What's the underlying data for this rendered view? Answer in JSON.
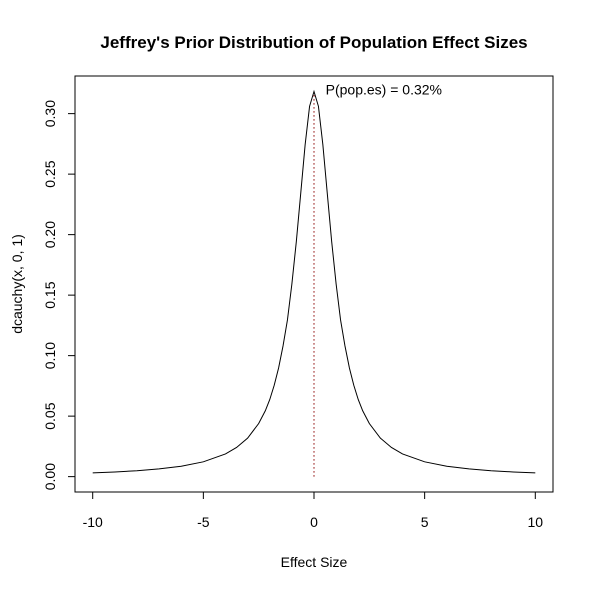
{
  "chart_data": {
    "type": "line",
    "title": "Jeffrey's Prior Distribution of Population Effect Sizes",
    "xlabel": "Effect Size",
    "ylabel": "dcauchy(x, 0, 1)",
    "xlim": [
      -10.8,
      10.8
    ],
    "ylim": [
      -0.0127,
      0.3311
    ],
    "x_ticks": [
      -10,
      -5,
      0,
      5,
      10
    ],
    "x_tick_labels": [
      "-10",
      "-5",
      "0",
      "5",
      "10"
    ],
    "y_ticks": [
      0.0,
      0.05,
      0.1,
      0.15,
      0.2,
      0.25,
      0.3
    ],
    "y_tick_labels": [
      "0.00",
      "0.05",
      "0.10",
      "0.15",
      "0.20",
      "0.25",
      "0.30"
    ],
    "grid": false,
    "series": [
      {
        "x": [
          -10,
          -9,
          -8,
          -7,
          -6,
          -5,
          -4,
          -3.5,
          -3,
          -2.5,
          -2.2,
          -2,
          -1.8,
          -1.6,
          -1.4,
          -1.2,
          -1,
          -0.8,
          -0.6,
          -0.4,
          -0.2,
          0,
          0.2,
          0.4,
          0.6,
          0.8,
          1,
          1.2,
          1.4,
          1.6,
          1.8,
          2,
          2.2,
          2.5,
          3,
          3.5,
          4,
          5,
          6,
          7,
          8,
          9,
          10
        ],
        "y": [
          0.00315,
          0.00388,
          0.0049,
          0.00637,
          0.0086,
          0.01224,
          0.01872,
          0.02411,
          0.03183,
          0.0439,
          0.05443,
          0.06366,
          0.07539,
          0.08976,
          0.10798,
          0.12949,
          0.15915,
          0.19409,
          0.23405,
          0.27443,
          0.30607,
          0.31831,
          0.30607,
          0.27443,
          0.23405,
          0.19409,
          0.15915,
          0.12949,
          0.10798,
          0.08976,
          0.07539,
          0.06366,
          0.05443,
          0.0439,
          0.03183,
          0.02411,
          0.01872,
          0.01224,
          0.0086,
          0.00637,
          0.0049,
          0.00388,
          0.00315
        ],
        "color": "#000000"
      }
    ],
    "reference_line": {
      "x": 0,
      "y_from": 0,
      "y_to": 0.31831,
      "style": "dotted",
      "color": "#8b0000"
    },
    "annotation": {
      "text": "P(pop.es) = 0.32%",
      "x": 0.3,
      "y": 0.3183
    }
  }
}
